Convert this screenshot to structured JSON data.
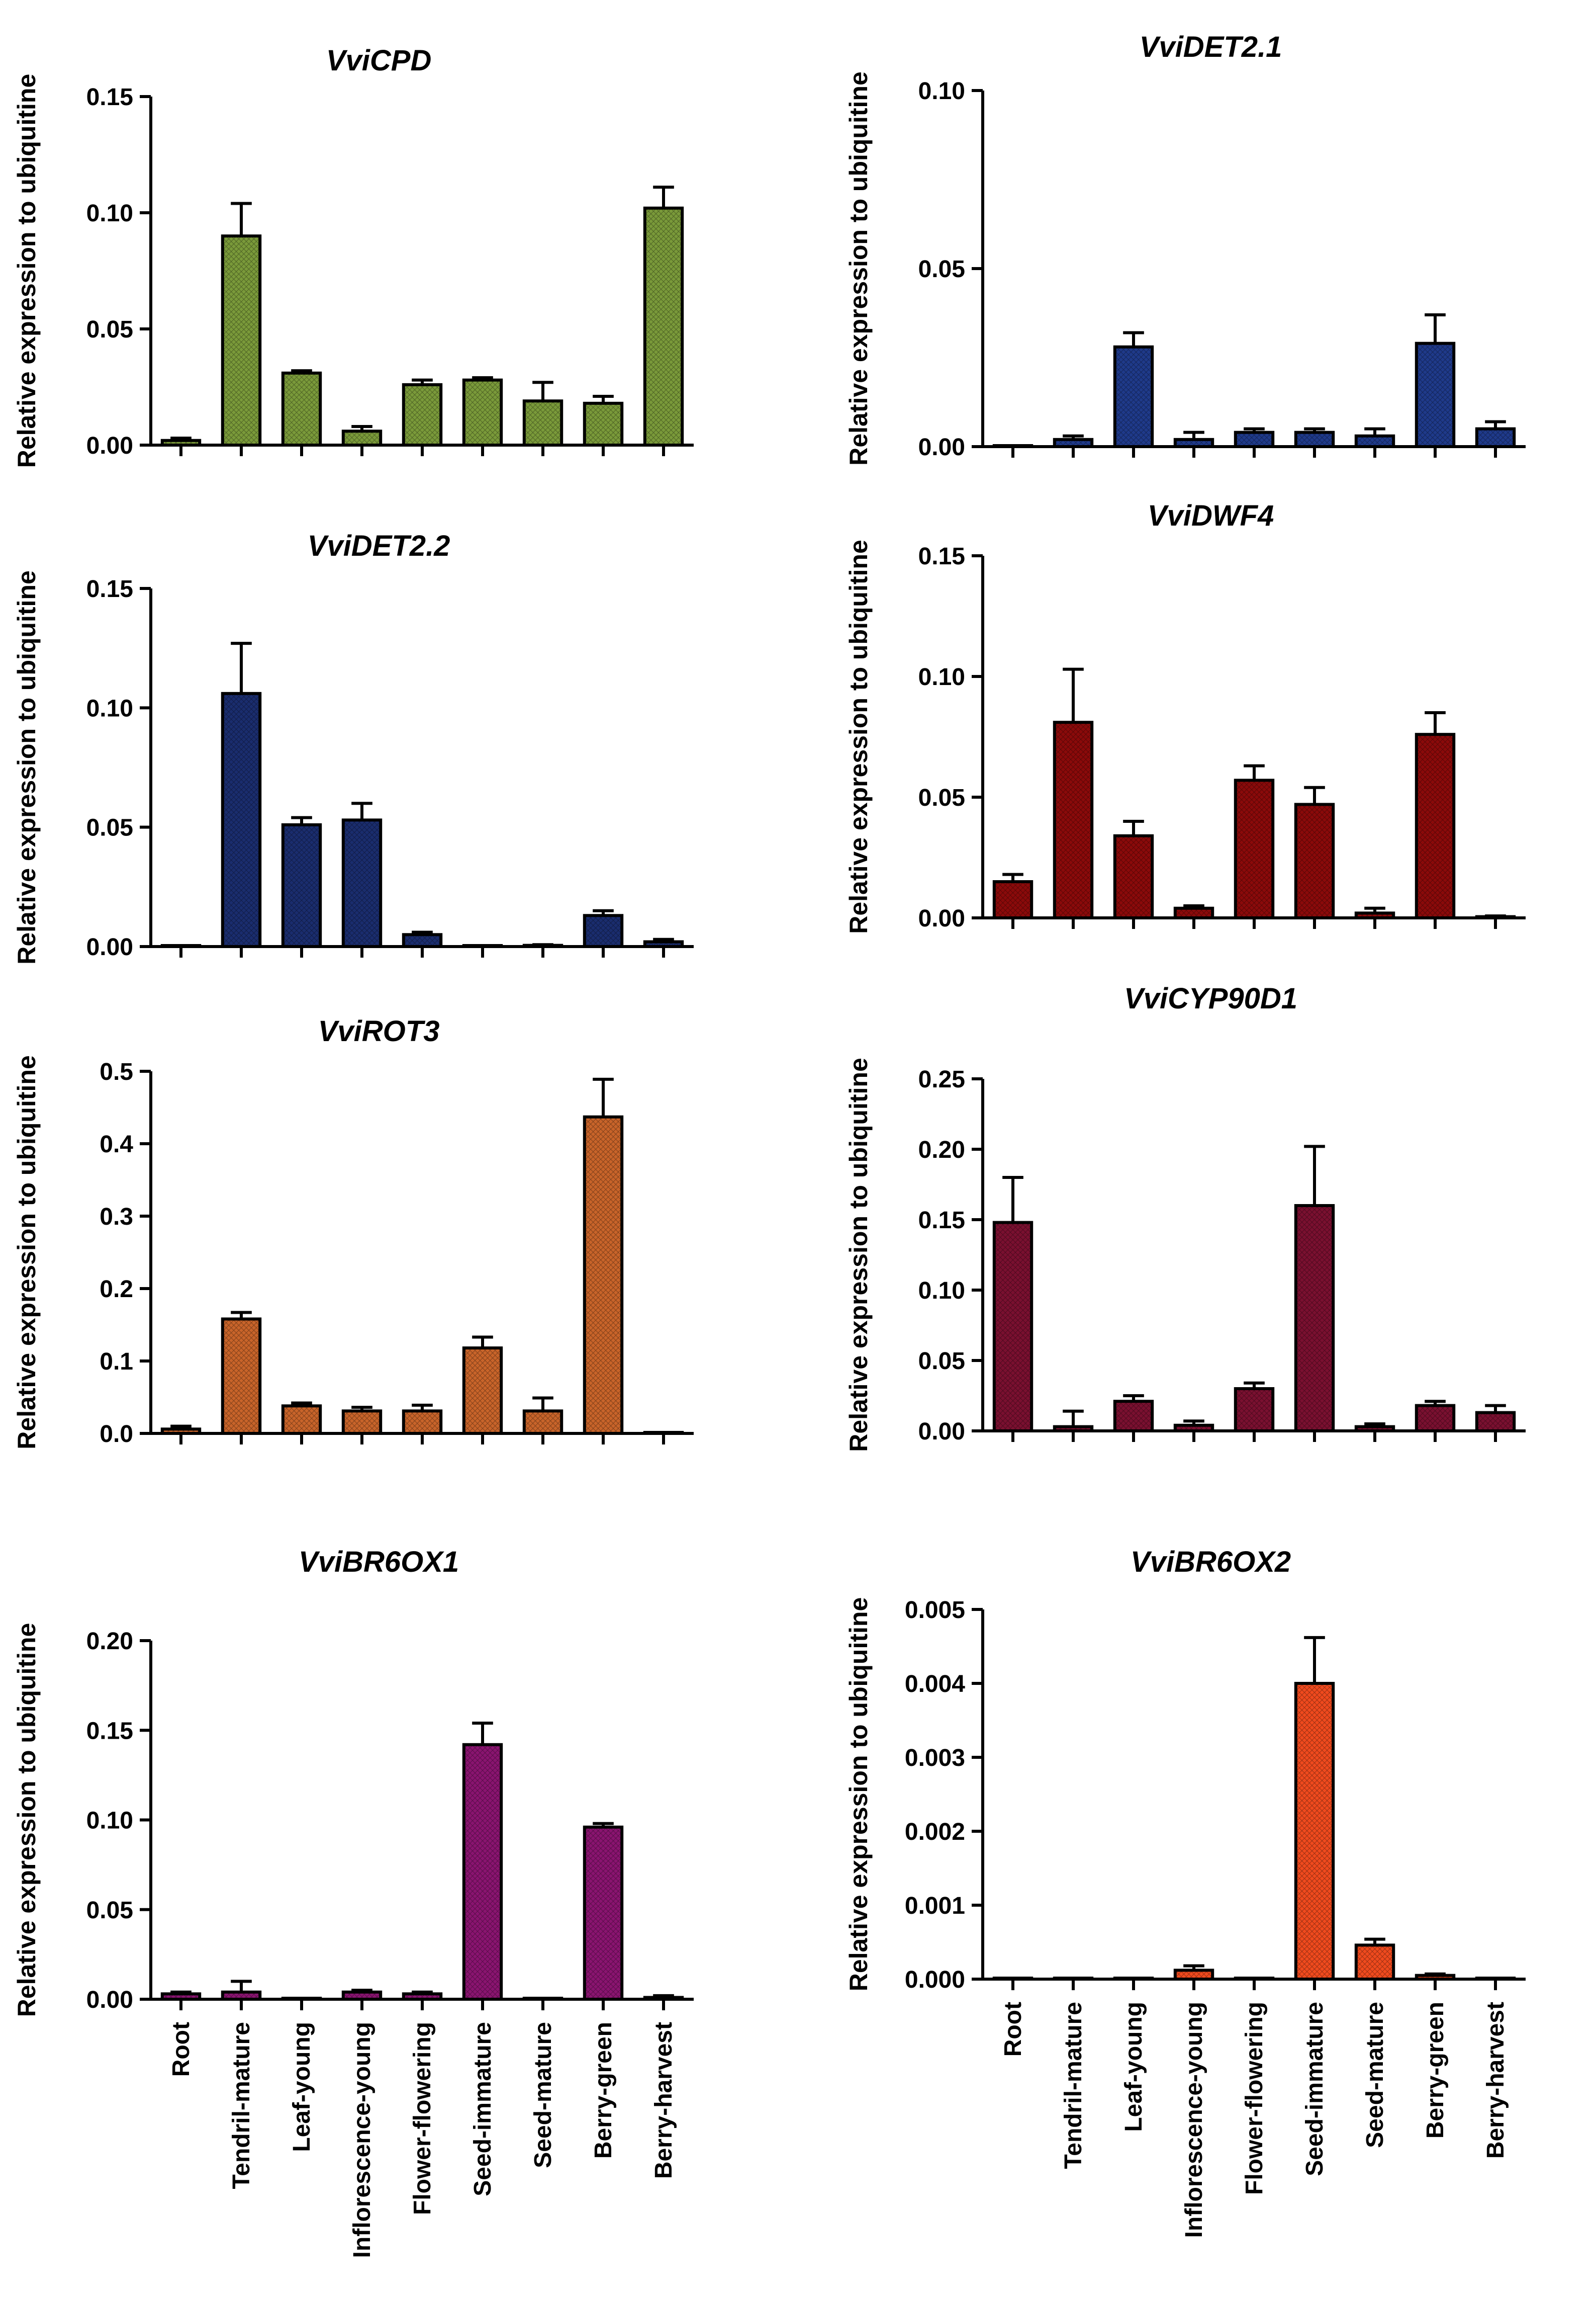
{
  "categories": [
    "Root",
    "Tendril-mature",
    "Leaf-young",
    "Inflorescence-young",
    "Flower-flowering",
    "Seed-immature",
    "Seed-mature",
    "Berry-green",
    "Berry-harvest"
  ],
  "chart_data": [
    {
      "type": "bar",
      "title": "VviCPD",
      "ylabel": "Relative expression to ubiquitine",
      "ylim": [
        0,
        0.15
      ],
      "yticks": [
        "0.00",
        "0.05",
        "0.10",
        "0.15"
      ],
      "color": "#7a9a3a",
      "values": [
        0.002,
        0.09,
        0.031,
        0.006,
        0.026,
        0.028,
        0.019,
        0.018,
        0.102
      ],
      "errors": [
        0.001,
        0.014,
        0.001,
        0.002,
        0.002,
        0.001,
        0.008,
        0.003,
        0.009
      ],
      "show_xlabels": false
    },
    {
      "type": "bar",
      "title": "VviDET2.1",
      "ylabel": "Relative expression to ubiquitine",
      "ylim": [
        0,
        0.1
      ],
      "yticks": [
        "0.00",
        "0.05",
        "0.10"
      ],
      "color": "#1f3a8a",
      "values": [
        0.0002,
        0.002,
        0.028,
        0.002,
        0.004,
        0.004,
        0.003,
        0.029,
        0.005
      ],
      "errors": [
        0.0002,
        0.001,
        0.004,
        0.002,
        0.001,
        0.001,
        0.002,
        0.008,
        0.002
      ],
      "show_xlabels": false
    },
    {
      "type": "bar",
      "title": "VviDET2.2",
      "ylabel": "Relative expression to ubiquitine",
      "ylim": [
        0,
        0.15
      ],
      "yticks": [
        "0.00",
        "0.05",
        "0.10",
        "0.15"
      ],
      "color": "#1a2d6e",
      "values": [
        0.0002,
        0.106,
        0.051,
        0.053,
        0.005,
        0.0002,
        0.0005,
        0.013,
        0.002
      ],
      "errors": [
        0.0002,
        0.021,
        0.003,
        0.007,
        0.001,
        0.0002,
        0.0003,
        0.002,
        0.001
      ],
      "show_xlabels": false
    },
    {
      "type": "bar",
      "title": "VviDWF4",
      "ylabel": "Relative expression to ubiquitine",
      "ylim": [
        0,
        0.15
      ],
      "yticks": [
        "0.00",
        "0.05",
        "0.10",
        "0.15"
      ],
      "color": "#8b0a0a",
      "values": [
        0.015,
        0.081,
        0.034,
        0.004,
        0.057,
        0.047,
        0.002,
        0.076,
        0.0005
      ],
      "errors": [
        0.003,
        0.022,
        0.006,
        0.001,
        0.006,
        0.007,
        0.002,
        0.009,
        0.0003
      ],
      "show_xlabels": false
    },
    {
      "type": "bar",
      "title": "VviROT3",
      "ylabel": "Relative expression to ubiquitine",
      "ylim": [
        0,
        0.5
      ],
      "yticks": [
        "0.0",
        "0.1",
        "0.2",
        "0.3",
        "0.4",
        "0.5"
      ],
      "color": "#c8642a",
      "values": [
        0.006,
        0.158,
        0.038,
        0.031,
        0.031,
        0.118,
        0.031,
        0.437,
        0.001
      ],
      "errors": [
        0.004,
        0.009,
        0.004,
        0.005,
        0.008,
        0.015,
        0.018,
        0.052,
        0.001
      ],
      "show_xlabels": false
    },
    {
      "type": "bar",
      "title": "VviCYP90D1",
      "ylabel": "Relative expression to ubiquitine",
      "ylim": [
        0,
        0.25
      ],
      "yticks": [
        "0.00",
        "0.05",
        "0.10",
        "0.15",
        "0.20",
        "0.25"
      ],
      "color": "#7a1030",
      "values": [
        0.148,
        0.003,
        0.021,
        0.004,
        0.03,
        0.16,
        0.003,
        0.018,
        0.013
      ],
      "errors": [
        0.032,
        0.011,
        0.004,
        0.003,
        0.004,
        0.042,
        0.002,
        0.003,
        0.005
      ],
      "show_xlabels": false
    },
    {
      "type": "bar",
      "title": "VviBR6OX1",
      "ylabel": "Relative expression to ubiquitine",
      "ylim": [
        0,
        0.2
      ],
      "yticks": [
        "0.00",
        "0.05",
        "0.10",
        "0.15",
        "0.20"
      ],
      "color": "#8a1470",
      "values": [
        0.003,
        0.004,
        0.0002,
        0.004,
        0.003,
        0.142,
        0.0005,
        0.096,
        0.001
      ],
      "errors": [
        0.001,
        0.006,
        0.0002,
        0.001,
        0.001,
        0.012,
        0.0003,
        0.002,
        0.001
      ],
      "show_xlabels": true
    },
    {
      "type": "bar",
      "title": "VviBR6OX2",
      "ylabel": "Relative expression to ubiquitine",
      "ylim": [
        0,
        0.005
      ],
      "yticks": [
        "0.000",
        "0.001",
        "0.002",
        "0.003",
        "0.004",
        "0.005"
      ],
      "color": "#f04a1e",
      "values": [
        1e-05,
        5e-06,
        1e-05,
        0.00012,
        5e-06,
        0.004,
        0.00046,
        5e-05,
        5e-06
      ],
      "errors": [
        1e-05,
        5e-06,
        1e-05,
        6e-05,
        5e-06,
        0.00062,
        8e-05,
        2e-05,
        5e-06
      ],
      "show_xlabels": true
    }
  ]
}
